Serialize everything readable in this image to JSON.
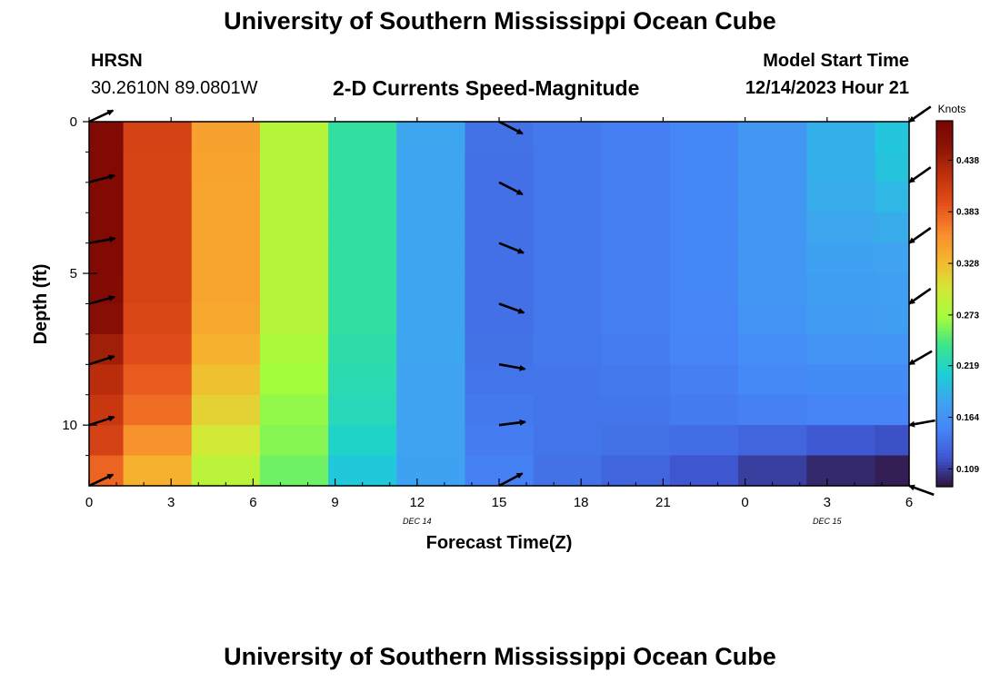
{
  "header": {
    "title": "University of Southern Mississippi Ocean Cube",
    "station": "HRSN",
    "coords": "30.2610N  89.0801W",
    "subtitle": "2-D Currents Speed-Magnitude",
    "model_start_label": "Model Start Time",
    "model_start_value": "12/14/2023 Hour 21"
  },
  "footer": {
    "title": "University of Southern Mississippi Ocean Cube"
  },
  "chart_data": {
    "type": "heatmap",
    "title": "2-D Currents Speed-Magnitude",
    "xlabel": "Forecast Time(Z)",
    "ylabel": "Depth (ft)",
    "x_tick_labels": [
      "0",
      "3",
      "6",
      "9",
      "12",
      "15",
      "18",
      "21",
      "0",
      "3",
      "6"
    ],
    "date_labels": [
      {
        "text": "DEC 14",
        "at_hour": 12
      },
      {
        "text": "DEC 15",
        "at_hour": 27
      }
    ],
    "y_tick_labels": [
      "0",
      "5",
      "10"
    ],
    "xlim": [
      0,
      30
    ],
    "ylim": [
      0,
      12
    ],
    "time_hours": [
      0,
      2.5,
      5,
      7.5,
      10,
      12.5,
      15,
      17.5,
      20,
      22.5,
      25,
      27.5,
      30
    ],
    "depth_rows": 12,
    "speed_knots": [
      [
        0.47,
        0.405,
        0.345,
        0.282,
        0.232,
        0.182,
        0.138,
        0.142,
        0.146,
        0.153,
        0.168,
        0.188,
        0.203
      ],
      [
        0.47,
        0.403,
        0.344,
        0.282,
        0.232,
        0.181,
        0.137,
        0.142,
        0.146,
        0.153,
        0.168,
        0.188,
        0.201
      ],
      [
        0.47,
        0.403,
        0.343,
        0.282,
        0.232,
        0.181,
        0.137,
        0.142,
        0.146,
        0.153,
        0.168,
        0.186,
        0.193
      ],
      [
        0.47,
        0.403,
        0.343,
        0.282,
        0.232,
        0.181,
        0.137,
        0.142,
        0.146,
        0.153,
        0.168,
        0.182,
        0.186
      ],
      [
        0.47,
        0.403,
        0.343,
        0.282,
        0.232,
        0.181,
        0.137,
        0.142,
        0.146,
        0.153,
        0.168,
        0.178,
        0.18
      ],
      [
        0.468,
        0.403,
        0.343,
        0.282,
        0.232,
        0.181,
        0.137,
        0.142,
        0.146,
        0.153,
        0.168,
        0.175,
        0.176
      ],
      [
        0.462,
        0.4,
        0.34,
        0.282,
        0.232,
        0.181,
        0.137,
        0.142,
        0.146,
        0.152,
        0.165,
        0.172,
        0.174
      ],
      [
        0.44,
        0.395,
        0.335,
        0.275,
        0.228,
        0.181,
        0.138,
        0.142,
        0.145,
        0.15,
        0.16,
        0.165,
        0.166
      ],
      [
        0.425,
        0.385,
        0.325,
        0.27,
        0.225,
        0.18,
        0.14,
        0.141,
        0.143,
        0.147,
        0.155,
        0.158,
        0.158
      ],
      [
        0.415,
        0.375,
        0.315,
        0.265,
        0.222,
        0.18,
        0.142,
        0.14,
        0.141,
        0.144,
        0.148,
        0.15,
        0.15
      ],
      [
        0.405,
        0.355,
        0.3,
        0.262,
        0.215,
        0.18,
        0.145,
        0.14,
        0.138,
        0.135,
        0.13,
        0.122,
        0.118
      ],
      [
        0.38,
        0.335,
        0.285,
        0.255,
        0.205,
        0.178,
        0.148,
        0.138,
        0.13,
        0.12,
        0.11,
        0.1,
        0.095
      ]
    ],
    "vectors": [
      {
        "hour": 0,
        "depth": 0,
        "dir_deg": 65
      },
      {
        "hour": 0,
        "depth": 2,
        "dir_deg": 75
      },
      {
        "hour": 0,
        "depth": 4,
        "dir_deg": 80
      },
      {
        "hour": 0,
        "depth": 6,
        "dir_deg": 75
      },
      {
        "hour": 0,
        "depth": 8,
        "dir_deg": 72
      },
      {
        "hour": 0,
        "depth": 10,
        "dir_deg": 72
      },
      {
        "hour": 0,
        "depth": 12,
        "dir_deg": 65
      },
      {
        "hour": 15,
        "depth": 0,
        "dir_deg": 117
      },
      {
        "hour": 15,
        "depth": 2,
        "dir_deg": 117
      },
      {
        "hour": 15,
        "depth": 4,
        "dir_deg": 112
      },
      {
        "hour": 15,
        "depth": 6,
        "dir_deg": 110
      },
      {
        "hour": 15,
        "depth": 8,
        "dir_deg": 100
      },
      {
        "hour": 15,
        "depth": 10,
        "dir_deg": 83
      },
      {
        "hour": 15,
        "depth": 12,
        "dir_deg": 62
      },
      {
        "hour": 30,
        "depth": 0,
        "dir_deg": 235
      },
      {
        "hour": 30,
        "depth": 2,
        "dir_deg": 235
      },
      {
        "hour": 30,
        "depth": 4,
        "dir_deg": 235
      },
      {
        "hour": 30,
        "depth": 6,
        "dir_deg": 235
      },
      {
        "hour": 30,
        "depth": 8,
        "dir_deg": 240
      },
      {
        "hour": 30,
        "depth": 10,
        "dir_deg": 260
      },
      {
        "hour": 30,
        "depth": 12,
        "dir_deg": 290
      }
    ],
    "colorbar": {
      "unit": "Knots",
      "min": 0.09,
      "max": 0.48,
      "tick_labels": [
        "0.438",
        "0.383",
        "0.328",
        "0.273",
        "0.219",
        "0.164",
        "0.109"
      ],
      "tick_values": [
        0.438,
        0.383,
        0.328,
        0.273,
        0.219,
        0.164,
        0.109
      ]
    },
    "colormap": [
      "#30123b",
      "#3e56d0",
      "#4684f7",
      "#3fa3f1",
      "#1bd0d5",
      "#3be48d",
      "#a3fc3c",
      "#d3e937",
      "#f5b82f",
      "#f98b2c",
      "#e5511b",
      "#c2320d",
      "#8e1505",
      "#7a0403"
    ]
  }
}
